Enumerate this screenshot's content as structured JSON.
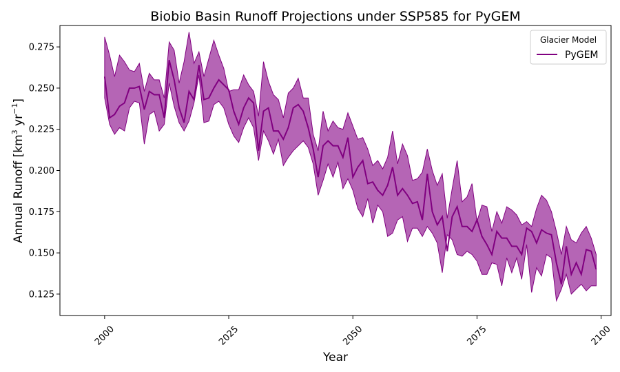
{
  "chart_data": {
    "type": "line",
    "title": "Biobio Basin Runoff Projections under SSP585 for PyGEM",
    "xlabel": "Year",
    "ylabel_base": "Annual Runoff [km",
    "ylabel_sup1": "3",
    "ylabel_mid": " yr",
    "ylabel_sup2": "−1",
    "ylabel_end": "]",
    "xlim": [
      1991,
      2102
    ],
    "ylim": [
      0.112,
      0.288
    ],
    "xticks": [
      2000,
      2025,
      2050,
      2075,
      2100
    ],
    "yticks": [
      0.125,
      0.15,
      0.175,
      0.2,
      0.225,
      0.25,
      0.275
    ],
    "ytick_labels": [
      "0.125",
      "0.150",
      "0.175",
      "0.200",
      "0.225",
      "0.250",
      "0.275"
    ],
    "legend": {
      "title": "Glacier Model",
      "placement": "top-right"
    },
    "colors": {
      "line": "#800080",
      "band": "#b565b5"
    },
    "series": [
      {
        "name": "PyGEM",
        "x": [
          2000,
          2001,
          2002,
          2003,
          2004,
          2005,
          2006,
          2007,
          2008,
          2009,
          2010,
          2011,
          2012,
          2013,
          2014,
          2015,
          2016,
          2017,
          2018,
          2019,
          2020,
          2021,
          2022,
          2023,
          2024,
          2025,
          2026,
          2027,
          2028,
          2029,
          2030,
          2031,
          2032,
          2033,
          2034,
          2035,
          2036,
          2037,
          2038,
          2039,
          2040,
          2041,
          2042,
          2043,
          2044,
          2045,
          2046,
          2047,
          2048,
          2049,
          2050,
          2051,
          2052,
          2053,
          2054,
          2055,
          2056,
          2057,
          2058,
          2059,
          2060,
          2061,
          2062,
          2063,
          2064,
          2065,
          2066,
          2067,
          2068,
          2069,
          2070,
          2071,
          2072,
          2073,
          2074,
          2075,
          2076,
          2077,
          2078,
          2079,
          2080,
          2081,
          2082,
          2083,
          2084,
          2085,
          2086,
          2087,
          2088,
          2089,
          2090,
          2091,
          2092,
          2093,
          2094,
          2095,
          2096,
          2097,
          2098,
          2099
        ],
        "mean": [
          0.257,
          0.232,
          0.234,
          0.239,
          0.241,
          0.25,
          0.25,
          0.251,
          0.237,
          0.248,
          0.246,
          0.246,
          0.232,
          0.267,
          0.255,
          0.238,
          0.229,
          0.248,
          0.243,
          0.264,
          0.243,
          0.244,
          0.25,
          0.255,
          0.252,
          0.249,
          0.236,
          0.228,
          0.238,
          0.244,
          0.241,
          0.212,
          0.236,
          0.238,
          0.224,
          0.224,
          0.219,
          0.226,
          0.238,
          0.24,
          0.236,
          0.226,
          0.213,
          0.196,
          0.215,
          0.218,
          0.215,
          0.215,
          0.208,
          0.22,
          0.196,
          0.202,
          0.206,
          0.192,
          0.193,
          0.188,
          0.185,
          0.191,
          0.202,
          0.185,
          0.189,
          0.185,
          0.18,
          0.181,
          0.17,
          0.198,
          0.175,
          0.167,
          0.172,
          0.151,
          0.172,
          0.178,
          0.166,
          0.166,
          0.163,
          0.17,
          0.16,
          0.155,
          0.149,
          0.163,
          0.159,
          0.159,
          0.154,
          0.154,
          0.149,
          0.165,
          0.163,
          0.156,
          0.164,
          0.162,
          0.161,
          0.144,
          0.131,
          0.154,
          0.137,
          0.144,
          0.137,
          0.152,
          0.151,
          0.14
        ],
        "upper": [
          0.281,
          0.27,
          0.257,
          0.27,
          0.266,
          0.261,
          0.26,
          0.265,
          0.248,
          0.259,
          0.255,
          0.255,
          0.244,
          0.278,
          0.273,
          0.253,
          0.266,
          0.284,
          0.265,
          0.272,
          0.257,
          0.268,
          0.279,
          0.27,
          0.262,
          0.248,
          0.249,
          0.249,
          0.258,
          0.252,
          0.248,
          0.233,
          0.266,
          0.254,
          0.246,
          0.243,
          0.232,
          0.247,
          0.25,
          0.256,
          0.244,
          0.244,
          0.222,
          0.212,
          0.236,
          0.224,
          0.23,
          0.226,
          0.225,
          0.235,
          0.227,
          0.219,
          0.22,
          0.213,
          0.203,
          0.206,
          0.201,
          0.208,
          0.224,
          0.204,
          0.216,
          0.209,
          0.194,
          0.195,
          0.199,
          0.213,
          0.2,
          0.191,
          0.198,
          0.171,
          0.189,
          0.206,
          0.181,
          0.184,
          0.192,
          0.169,
          0.179,
          0.178,
          0.163,
          0.175,
          0.168,
          0.178,
          0.176,
          0.173,
          0.167,
          0.169,
          0.166,
          0.177,
          0.185,
          0.182,
          0.175,
          0.163,
          0.149,
          0.166,
          0.158,
          0.156,
          0.162,
          0.166,
          0.159,
          0.149
        ],
        "lower": [
          0.244,
          0.228,
          0.222,
          0.226,
          0.224,
          0.238,
          0.242,
          0.241,
          0.216,
          0.234,
          0.236,
          0.224,
          0.228,
          0.253,
          0.239,
          0.229,
          0.224,
          0.23,
          0.241,
          0.258,
          0.229,
          0.23,
          0.24,
          0.242,
          0.238,
          0.228,
          0.221,
          0.217,
          0.226,
          0.232,
          0.226,
          0.206,
          0.224,
          0.218,
          0.21,
          0.219,
          0.203,
          0.208,
          0.212,
          0.215,
          0.218,
          0.214,
          0.204,
          0.185,
          0.194,
          0.204,
          0.196,
          0.205,
          0.189,
          0.195,
          0.188,
          0.177,
          0.172,
          0.183,
          0.168,
          0.179,
          0.175,
          0.16,
          0.162,
          0.17,
          0.172,
          0.157,
          0.165,
          0.165,
          0.16,
          0.166,
          0.162,
          0.156,
          0.138,
          0.161,
          0.158,
          0.149,
          0.148,
          0.151,
          0.149,
          0.145,
          0.137,
          0.137,
          0.144,
          0.143,
          0.13,
          0.147,
          0.138,
          0.147,
          0.134,
          0.155,
          0.126,
          0.141,
          0.136,
          0.149,
          0.147,
          0.121,
          0.128,
          0.137,
          0.125,
          0.128,
          0.131,
          0.127,
          0.13,
          0.13
        ]
      }
    ]
  }
}
